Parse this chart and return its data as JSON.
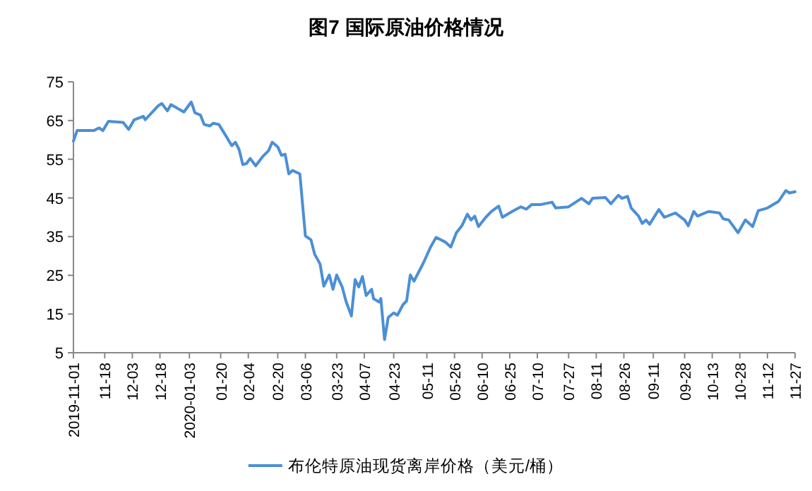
{
  "chart_data": {
    "type": "line",
    "title": "图7  国际原油价格情况",
    "legend": "bottom",
    "x": [
      "2019-11-01",
      "2019-11-03",
      "2019-11-12",
      "2019-11-15",
      "2019-11-17",
      "2019-11-20",
      "2019-11-28",
      "2019-12-01",
      "2019-12-04",
      "2019-12-09",
      "2019-12-10",
      "2019-12-17",
      "2019-12-19",
      "2019-12-22",
      "2019-12-24",
      "2019-12-31",
      "2020-01-04",
      "2020-01-06",
      "2020-01-09",
      "2020-01-11",
      "2020-01-14",
      "2020-01-16",
      "2020-01-19",
      "2020-01-23",
      "2020-01-26",
      "2020-01-28",
      "2020-01-30",
      "2020-02-01",
      "2020-02-03",
      "2020-02-05",
      "2020-02-08",
      "2020-02-12",
      "2020-02-15",
      "2020-02-17",
      "2020-02-20",
      "2020-02-22",
      "2020-02-24",
      "2020-02-26",
      "2020-02-28",
      "2020-03-03",
      "2020-03-06",
      "2020-03-09",
      "2020-03-11",
      "2020-03-14",
      "2020-03-16",
      "2020-03-19",
      "2020-03-21",
      "2020-03-23",
      "2020-03-26",
      "2020-03-28",
      "2020-03-31",
      "2020-04-02",
      "2020-04-04",
      "2020-04-06",
      "2020-04-08",
      "2020-04-11",
      "2020-04-12",
      "2020-04-15",
      "2020-04-16",
      "2020-04-18",
      "2020-04-20",
      "2020-04-23",
      "2020-04-25",
      "2020-04-28",
      "2020-04-30",
      "2020-05-02",
      "2020-05-04",
      "2020-05-09",
      "2020-05-13",
      "2020-05-16",
      "2020-05-21",
      "2020-05-24",
      "2020-05-27",
      "2020-05-30",
      "2020-06-02",
      "2020-06-04",
      "2020-06-06",
      "2020-06-08",
      "2020-06-12",
      "2020-06-15",
      "2020-06-19",
      "2020-06-21",
      "2020-06-27",
      "2020-07-01",
      "2020-07-04",
      "2020-07-07",
      "2020-07-12",
      "2020-07-18",
      "2020-07-20",
      "2020-07-27",
      "2020-08-03",
      "2020-08-07",
      "2020-08-09",
      "2020-08-16",
      "2020-08-19",
      "2020-08-23",
      "2020-08-25",
      "2020-08-28",
      "2020-08-30",
      "2020-09-03",
      "2020-09-05",
      "2020-09-07",
      "2020-09-09",
      "2020-09-14",
      "2020-09-17",
      "2020-09-23",
      "2020-09-28",
      "2020-09-30",
      "2020-10-03",
      "2020-10-05",
      "2020-10-11",
      "2020-10-17",
      "2020-10-19",
      "2020-10-22",
      "2020-10-27",
      "2020-10-31",
      "2020-11-04",
      "2020-11-07",
      "2020-11-12",
      "2020-11-18",
      "2020-11-22",
      "2020-11-24",
      "2020-11-27"
    ],
    "series": [
      {
        "name": "布伦特原油现货离岸价格（美元/桶）",
        "color": "#4b8fd6",
        "values": [
          59.7,
          62.4,
          62.4,
          63.1,
          62.4,
          64.8,
          64.5,
          62.7,
          65.2,
          66.1,
          65.2,
          68.8,
          69.4,
          67.5,
          69.1,
          67.2,
          69.8,
          67.0,
          66.4,
          64.0,
          63.6,
          64.3,
          64.0,
          60.9,
          58.5,
          59.4,
          57.5,
          53.6,
          53.9,
          55.2,
          53.3,
          55.8,
          57.2,
          59.4,
          58.2,
          56.0,
          56.3,
          51.2,
          52.1,
          51.2,
          35.2,
          34.2,
          30.5,
          27.9,
          22.2,
          25.1,
          21.4,
          25.1,
          22.0,
          18.4,
          14.5,
          23.9,
          22.0,
          24.7,
          19.8,
          21.4,
          19.0,
          18.1,
          19.0,
          8.4,
          14.1,
          15.3,
          14.7,
          17.4,
          18.4,
          25.1,
          23.5,
          28.1,
          32.3,
          34.8,
          33.6,
          32.3,
          36.0,
          37.8,
          40.8,
          39.3,
          40.3,
          37.6,
          40.0,
          41.5,
          42.9,
          40.0,
          41.7,
          42.7,
          42.1,
          43.3,
          43.3,
          43.9,
          42.4,
          42.7,
          44.9,
          43.5,
          44.9,
          45.1,
          43.5,
          45.7,
          44.9,
          45.4,
          42.4,
          40.3,
          38.4,
          39.3,
          38.2,
          42.0,
          40.0,
          41.1,
          39.3,
          37.8,
          41.5,
          40.3,
          41.5,
          41.1,
          39.6,
          39.3,
          36.0,
          39.3,
          37.6,
          41.7,
          42.4,
          44.1,
          46.9,
          46.3,
          46.6
        ]
      }
    ],
    "xlim": [
      "2019-11-01",
      "2020-11-27"
    ],
    "xticks": [
      {
        "value": "2019-11-01",
        "label": "2019-11-01"
      },
      {
        "value": "2019-11-18",
        "label": "11-18"
      },
      {
        "value": "2019-12-03",
        "label": "12-03"
      },
      {
        "value": "2019-12-18",
        "label": "12-18"
      },
      {
        "value": "2020-01-03",
        "label": "2020-01-03"
      },
      {
        "value": "2020-01-20",
        "label": "01-20"
      },
      {
        "value": "2020-02-04",
        "label": "02-04"
      },
      {
        "value": "2020-02-20",
        "label": "02-20"
      },
      {
        "value": "2020-03-06",
        "label": "03-06"
      },
      {
        "value": "2020-03-23",
        "label": "03-23"
      },
      {
        "value": "2020-04-07",
        "label": "04-07"
      },
      {
        "value": "2020-04-23",
        "label": "04-23"
      },
      {
        "value": "2020-05-11",
        "label": "05-11"
      },
      {
        "value": "2020-05-26",
        "label": "05-26"
      },
      {
        "value": "2020-06-10",
        "label": "06-10"
      },
      {
        "value": "2020-06-25",
        "label": "06-25"
      },
      {
        "value": "2020-07-10",
        "label": "07-10"
      },
      {
        "value": "2020-07-27",
        "label": "07-27"
      },
      {
        "value": "2020-08-11",
        "label": "08-11"
      },
      {
        "value": "2020-08-26",
        "label": "08-26"
      },
      {
        "value": "2020-09-11",
        "label": "09-11"
      },
      {
        "value": "2020-09-28",
        "label": "09-28"
      },
      {
        "value": "2020-10-13",
        "label": "10-13"
      },
      {
        "value": "2020-10-28",
        "label": "10-28"
      },
      {
        "value": "2020-11-12",
        "label": "11-12"
      },
      {
        "value": "2020-11-27",
        "label": "11-27"
      }
    ],
    "ylim": [
      5,
      75
    ],
    "yticks": [
      5,
      15,
      25,
      35,
      45,
      55,
      65,
      75
    ]
  }
}
